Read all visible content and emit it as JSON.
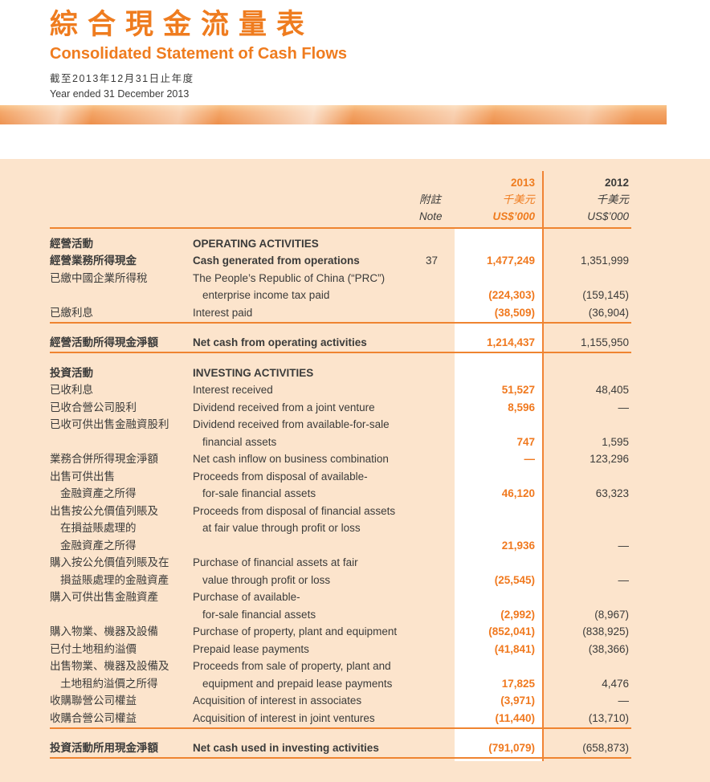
{
  "page": {
    "title_zh": "綜合現金流量表",
    "title_en": "Consolidated Statement of Cash Flows",
    "period_zh": "截至2013年12月31日止年度",
    "period_en": "Year ended 31 December 2013"
  },
  "colors": {
    "accent_orange": "#EF7C1F",
    "value_orange": "#F0791F",
    "rule_orange": "#EF8430",
    "table_background": "#FCE4CC",
    "highlight_column": "#FFFFFF",
    "body_text": "#3B3B3A"
  },
  "table": {
    "header": {
      "year_2013": "2013",
      "year_2012": "2012",
      "note_zh": "附註",
      "note_en": "Note",
      "unit_zh_2013": "千美元",
      "unit_zh_2012": "千美元",
      "unit_en_2013": "US$’000",
      "unit_en_2012": "US$’000"
    },
    "rows": [
      {
        "zh": "經營活動",
        "en": "OPERATING ACTIVITIES",
        "b": true
      },
      {
        "zh": "經營業務所得現金",
        "en": "Cash generated from operations",
        "b": true,
        "note": "37",
        "v13": "1,477,249",
        "v12": "1,351,999"
      },
      {
        "zh": "已繳中國企業所得稅",
        "en": "The People’s Republic of China (“PRC”)"
      },
      {
        "en": "enterprise income tax paid",
        "ei": true,
        "v13": "(224,303)",
        "v12": "(159,145)"
      },
      {
        "zh": "已繳利息",
        "en": "Interest paid",
        "v13": "(38,509)",
        "v12": "(36,904)"
      },
      {
        "t": "rule"
      },
      {
        "t": "gap"
      },
      {
        "zh": "經營活動所得現金淨額",
        "en": "Net cash from operating activities",
        "b": true,
        "v13": "1,214,437",
        "v12": "1,155,950"
      },
      {
        "t": "rule"
      },
      {
        "t": "gap"
      },
      {
        "zh": "投資活動",
        "en": "INVESTING ACTIVITIES",
        "b": true
      },
      {
        "zh": "已收利息",
        "en": "Interest received",
        "v13": "51,527",
        "v12": "48,405"
      },
      {
        "zh": "已收合營公司股利",
        "en": "Dividend received from a joint venture",
        "v13": "8,596",
        "v12": "—"
      },
      {
        "zh": "已收可供出售金融資股利",
        "en": "Dividend received from available-for-sale"
      },
      {
        "en": "financial assets",
        "ei": true,
        "v13": "747",
        "v12": "1,595"
      },
      {
        "zh": "業務合併所得現金淨額",
        "en": "Net cash inflow on business combination",
        "v13": "—",
        "v12": "123,296"
      },
      {
        "zh": "出售可供出售",
        "en": "Proceeds from disposal of available-"
      },
      {
        "zh": "金融資產之所得",
        "zi": true,
        "en": "for-sale financial assets",
        "ei": true,
        "v13": "46,120",
        "v12": "63,323"
      },
      {
        "zh": "出售按公允價值列賬及",
        "en": "Proceeds from disposal of financial assets"
      },
      {
        "zh": "在損益賬處理的",
        "zi": true,
        "en": "at fair value through profit or loss",
        "ei": true
      },
      {
        "zh": "金融資產之所得",
        "zi": true,
        "v13": "21,936",
        "v12": "—"
      },
      {
        "zh": "購入按公允價值列賬及在",
        "en": "Purchase of financial assets at fair"
      },
      {
        "zh": "損益賬處理的金融資產",
        "zi": true,
        "en": "value through profit or loss",
        "ei": true,
        "v13": "(25,545)",
        "v12": "—"
      },
      {
        "zh": "購入可供出售金融資產",
        "en": "Purchase of available-"
      },
      {
        "en": "for-sale financial assets",
        "ei": true,
        "v13": "(2,992)",
        "v12": "(8,967)"
      },
      {
        "zh": "購入物業、機器及設備",
        "en": "Purchase of property, plant and equipment",
        "v13": "(852,041)",
        "v12": "(838,925)"
      },
      {
        "zh": "已付土地租約溢價",
        "en": "Prepaid lease payments",
        "v13": "(41,841)",
        "v12": "(38,366)"
      },
      {
        "zh": "出售物業、機器及設備及",
        "en": "Proceeds from sale of property, plant and"
      },
      {
        "zh": "土地租約溢價之所得",
        "zi": true,
        "en": "equipment and prepaid lease payments",
        "ei": true,
        "v13": "17,825",
        "v12": "4,476"
      },
      {
        "zh": "收購聯營公司權益",
        "en": "Acquisition of interest in associates",
        "v13": "(3,971)",
        "v12": "—"
      },
      {
        "zh": "收購合營公司權益",
        "en": "Acquisition of interest in joint ventures",
        "v13": "(11,440)",
        "v12": "(13,710)"
      },
      {
        "t": "rule"
      },
      {
        "t": "gap"
      },
      {
        "zh": "投資活動所用現金淨額",
        "en": "Net cash used in investing activities",
        "b": true,
        "v13": "(791,079)",
        "v12": "(658,873)"
      },
      {
        "t": "rule"
      }
    ]
  }
}
